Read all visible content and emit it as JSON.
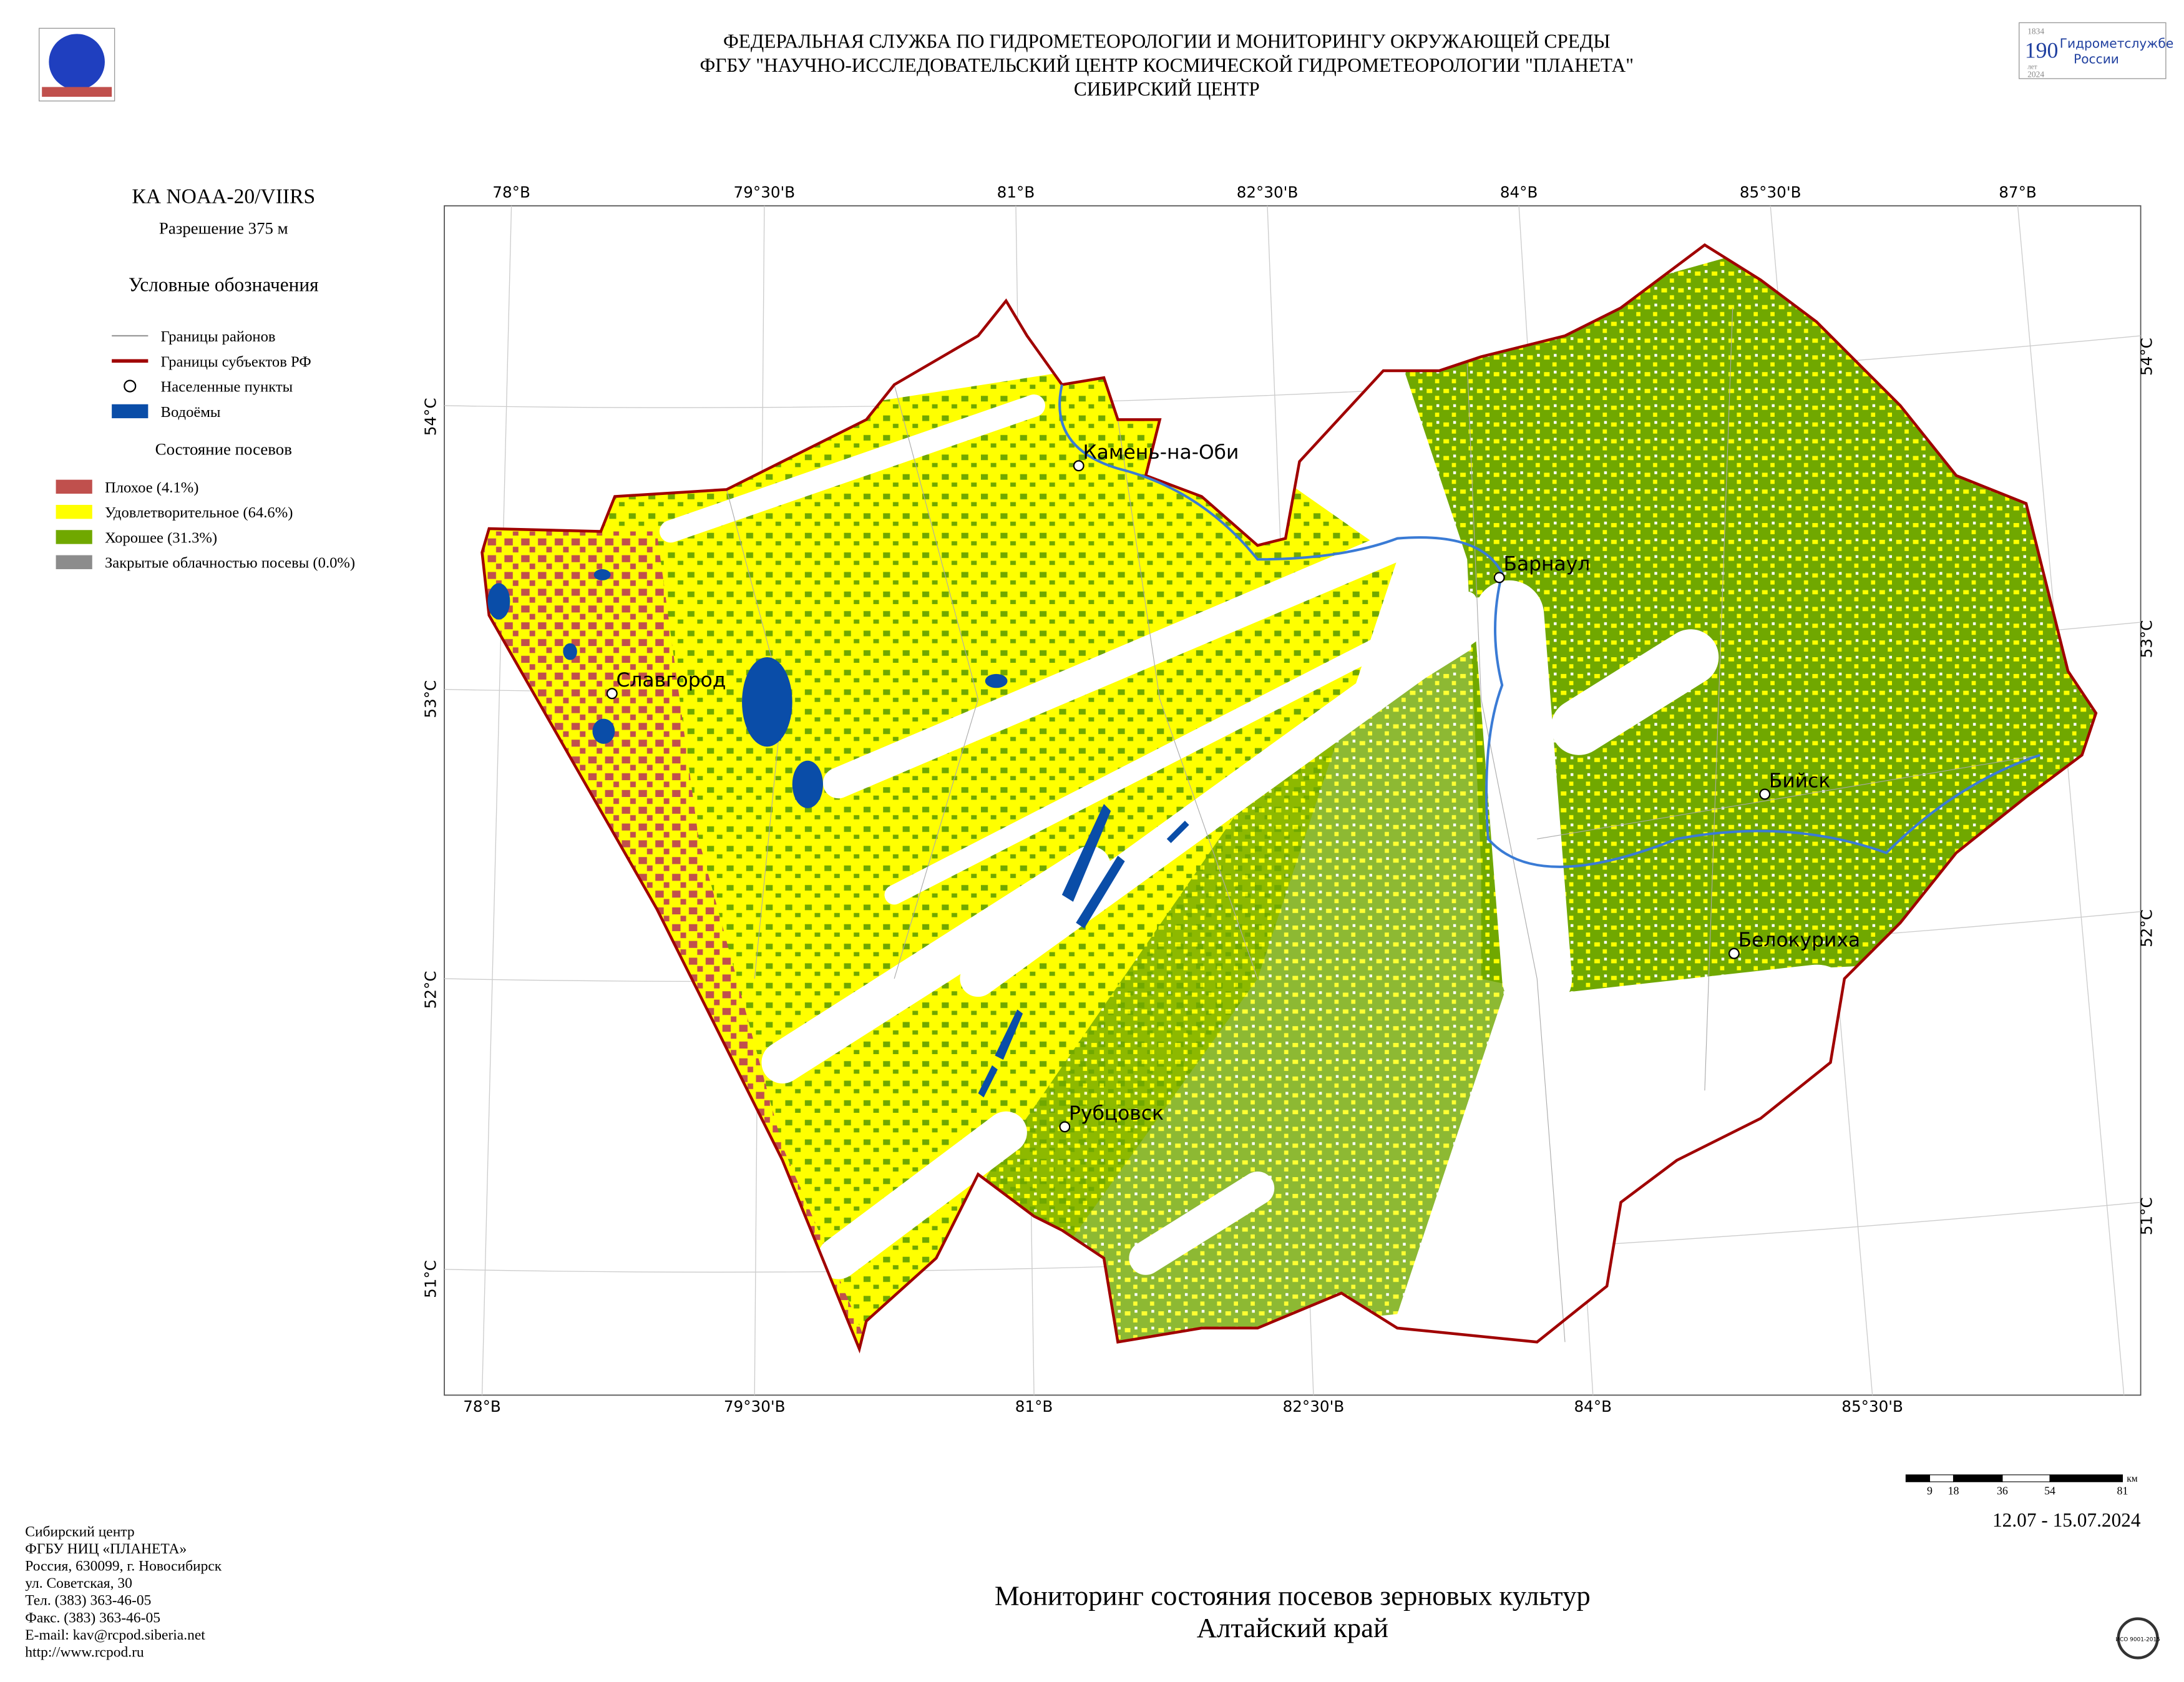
{
  "header": {
    "lines": [
      "ФЕДЕРАЛЬНАЯ СЛУЖБА ПО ГИДРОМЕТЕОРОЛОГИИ И МОНИТОРИНГУ ОКРУЖАЮЩЕЙ СРЕДЫ",
      "ФГБУ \"НАУЧНО-ИССЛЕДОВАТЕЛЬСКИЙ ЦЕНТР КОСМИЧЕСКОЙ ГИДРОМЕТЕОРОЛОГИИ \"ПЛАНЕТА\"",
      "СИБИРСКИЙ ЦЕНТР"
    ]
  },
  "logo": {
    "years_start": "1834",
    "number": "190",
    "years_word": "лет",
    "years_end": "2024",
    "line1": "Гидрометслужбе",
    "line2": "России"
  },
  "sidebar": {
    "satellite": "КА NOAA-20/VIIRS",
    "resolution": "Разрешение 375 м",
    "legend_title": "Условные обозначения",
    "legend": [
      {
        "label": "Границы районов",
        "color": "#999999",
        "kind": "line"
      },
      {
        "label": "Границы субъектов РФ",
        "color": "#a00000",
        "kind": "thick"
      },
      {
        "label": "Населенные пункты",
        "color": "#000000",
        "kind": "point"
      },
      {
        "label": "Водоёмы",
        "color": "#0a4da8",
        "kind": "box"
      }
    ],
    "crops_title": "Состояние посевов",
    "crops": [
      {
        "label": "Плохое (4.1%)",
        "color": "#c0504d"
      },
      {
        "label": "Удовлетворительное (64.6%)",
        "color": "#ffff00"
      },
      {
        "label": "Хорошее (31.3%)",
        "color": "#70a800"
      },
      {
        "label": "Закрытые облачностью посевы (0.0%)",
        "color": "#8c8c8c"
      }
    ]
  },
  "graticule": {
    "top": [
      "78°В",
      "79°30'В",
      "81°В",
      "82°30'В",
      "84°В",
      "85°30'В",
      "87°В"
    ],
    "bottom": [
      "78°В",
      "79°30'В",
      "81°В",
      "82°30'В",
      "84°В",
      "85°30'В"
    ],
    "left": [
      "54°С",
      "53°С",
      "52°С",
      "51°С"
    ],
    "right": [
      "54°С",
      "53°С",
      "52°С",
      "51°С"
    ]
  },
  "cities": [
    "Камень-на-Оби",
    "Барнаул",
    "Славгород",
    "Бийск",
    "Белокуриха",
    "Рубцовск"
  ],
  "scale": {
    "labels": [
      "9",
      "18",
      "36",
      "54",
      "81"
    ],
    "unit": "км"
  },
  "date": "12.07 - 15.07.2024",
  "footer": [
    "Сибирский центр",
    "ФГБУ НИЦ «ПЛАНЕТА»",
    "Россия, 630099, г. Новосибирск",
    "ул. Советская, 30",
    "Тел. (383) 363-46-05",
    "Факс. (383) 363-46-05",
    "E-mail: kav@rcpod.siberia.net",
    "http://www.rcpod.ru"
  ],
  "title": [
    "Мониторинг состояния посевов зерновых культур",
    "Алтайский край"
  ],
  "iso": "ИСО 9001-2015"
}
